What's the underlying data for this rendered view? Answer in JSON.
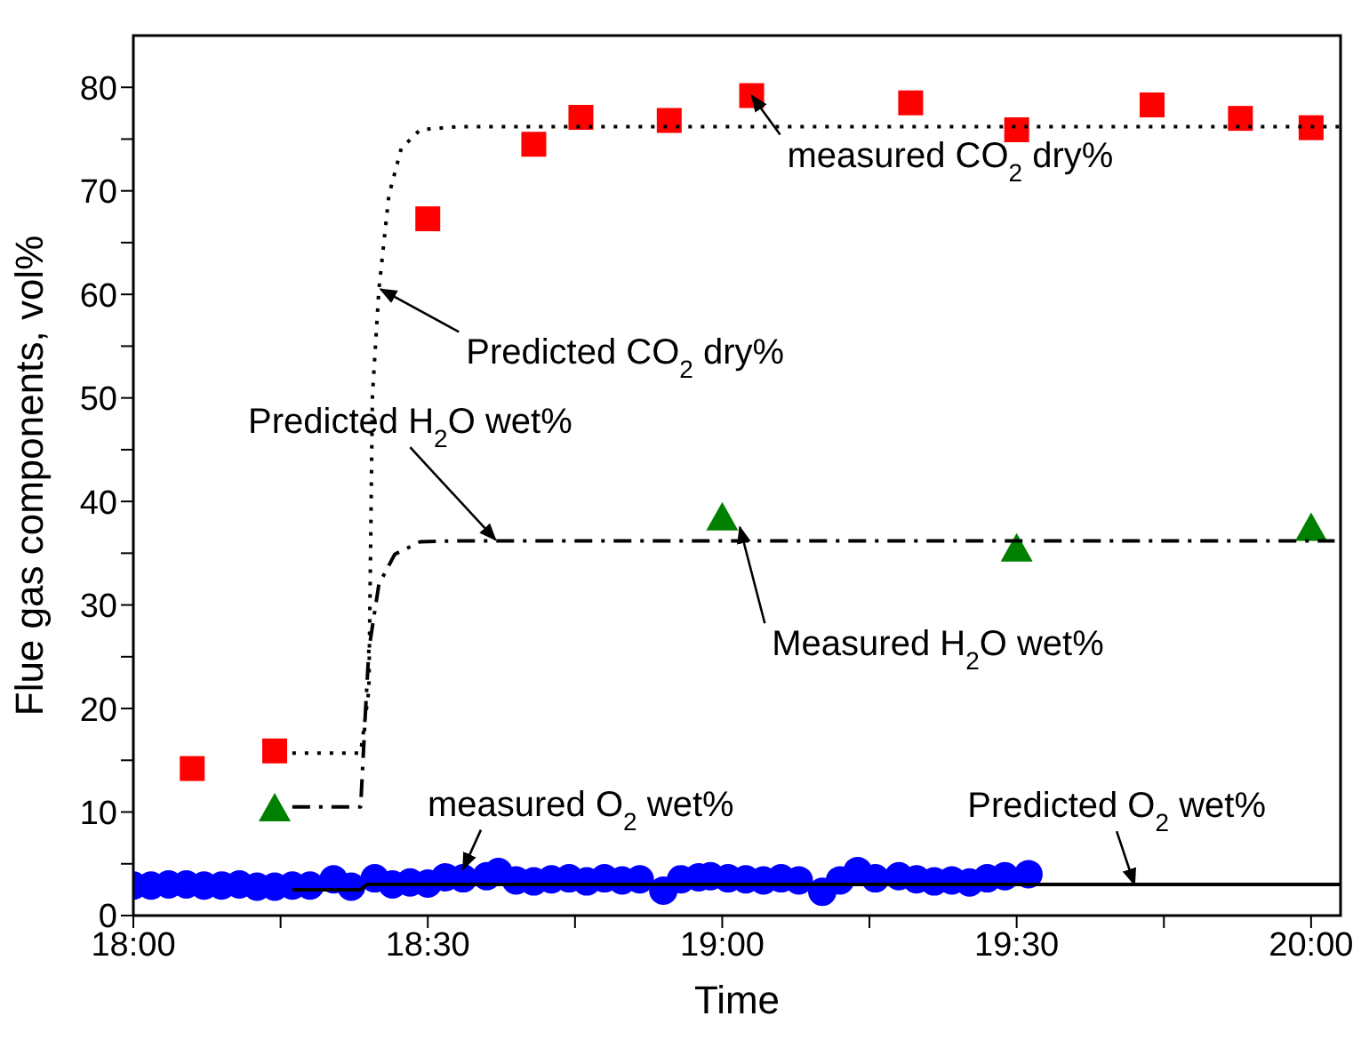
{
  "chart_data": {
    "type": "scatter",
    "xlabel": "Time",
    "ylabel": "Flue gas components,  vol%",
    "xlim": [
      18,
      20.05
    ],
    "ylim": [
      0,
      85
    ],
    "xticks": [
      {
        "value": 18,
        "label": "18:00"
      },
      {
        "value": 18.25,
        "label": null
      },
      {
        "value": 18.5,
        "label": "18:30"
      },
      {
        "value": 18.75,
        "label": null
      },
      {
        "value": 19,
        "label": "19:00"
      },
      {
        "value": 19.25,
        "label": null
      },
      {
        "value": 19.5,
        "label": "19:30"
      },
      {
        "value": 19.75,
        "label": null
      },
      {
        "value": 20,
        "label": "20:00"
      }
    ],
    "yticks": [
      0,
      {
        "value": 5,
        "label": null
      },
      10,
      {
        "value": 15,
        "label": null
      },
      20,
      {
        "value": 25,
        "label": null
      },
      30,
      {
        "value": 35,
        "label": null
      },
      40,
      {
        "value": 45,
        "label": null
      },
      50,
      {
        "value": 55,
        "label": null
      },
      60,
      {
        "value": 65,
        "label": null
      },
      70,
      {
        "value": 75,
        "label": null
      },
      80
    ],
    "grid": false,
    "legend": false,
    "series": [
      {
        "color": "#ff0000",
        "marker": "square",
        "x": [
          18.1,
          18.24,
          18.5,
          18.68,
          18.76,
          18.91,
          19.05,
          19.32,
          19.5,
          19.73,
          19.88,
          20.0
        ],
        "values": [
          14.2,
          15.9,
          67.3,
          74.5,
          77.1,
          76.8,
          79.2,
          78.5,
          75.9,
          78.3,
          77.0,
          76.1
        ]
      },
      {
        "color": "#008000",
        "marker": "triangle",
        "x": [
          18.24,
          19.0,
          19.5,
          20.0
        ],
        "values": [
          10.3,
          38.4,
          35.4,
          37.4
        ]
      },
      {
        "color": "#0000ff",
        "marker": "circle",
        "x": [
          18.0,
          18.03,
          18.06,
          18.09,
          18.12,
          18.15,
          18.18,
          18.21,
          18.24,
          18.27,
          18.3,
          18.34,
          18.37,
          18.41,
          18.44,
          18.47,
          18.5,
          18.53,
          18.56,
          18.6,
          18.62,
          18.65,
          18.68,
          18.71,
          18.74,
          18.77,
          18.8,
          18.83,
          18.86,
          18.9,
          18.93,
          18.96,
          18.98,
          19.01,
          19.04,
          19.07,
          19.1,
          19.13,
          19.17,
          19.2,
          19.23,
          19.26,
          19.3,
          19.33,
          19.36,
          19.39,
          19.42,
          19.45,
          19.48,
          19.52
        ],
        "values": [
          2.9,
          2.9,
          3.0,
          3.0,
          2.9,
          2.9,
          3.0,
          2.8,
          2.8,
          2.9,
          2.9,
          3.5,
          2.8,
          3.6,
          3.0,
          3.2,
          3.1,
          3.7,
          3.6,
          3.8,
          4.2,
          3.4,
          3.3,
          3.5,
          3.6,
          3.3,
          3.6,
          3.4,
          3.5,
          2.4,
          3.5,
          3.7,
          3.8,
          3.6,
          3.5,
          3.4,
          3.6,
          3.4,
          2.3,
          3.4,
          4.3,
          3.6,
          3.8,
          3.5,
          3.3,
          3.4,
          3.2,
          3.6,
          3.8,
          4.0
        ]
      },
      {
        "type": "line",
        "color": "#000000",
        "line_style": "dotted",
        "x": [
          18.27,
          18.386,
          18.4,
          18.406,
          18.417,
          18.434,
          18.455,
          18.487,
          18.55,
          20.05
        ],
        "values": [
          15.7,
          15.7,
          21.8,
          50.2,
          60.5,
          69.6,
          74.1,
          75.9,
          76.2,
          76.2
        ]
      },
      {
        "type": "line",
        "color": "#000000",
        "line_style": "dashdot",
        "x": [
          18.27,
          18.386,
          18.394,
          18.4,
          18.417,
          18.444,
          18.487,
          18.55,
          20.04
        ],
        "values": [
          10.5,
          10.5,
          19.5,
          25.7,
          32.0,
          34.9,
          36.1,
          36.2,
          36.2
        ]
      },
      {
        "type": "line",
        "color": "#000000",
        "line_style": "solid",
        "x": [
          18.27,
          18.386,
          18.397,
          20.05
        ],
        "values": [
          2.5,
          2.5,
          3.0,
          3.0
        ]
      }
    ],
    "annotations": [
      {
        "text": "measured CO$_{2}$ dry%",
        "x": 19.05,
        "y": 79.2
      },
      {
        "text": "Predicted CO$_{2}$ dry%",
        "x": 18.42,
        "y": 60.5
      },
      {
        "text": "Predicted H$_{2}$O wet%",
        "x": 18.615,
        "y": 36.3
      },
      {
        "text": "Measured H$_{2}$O wet%",
        "x": 19.03,
        "y": 37.5
      },
      {
        "text": "measured O$_{2}$ wet%",
        "x": 18.56,
        "y": 4.5
      },
      {
        "text": "Predicted O$_{2}$ wet%",
        "x": 19.7,
        "y": 3.0
      }
    ]
  }
}
